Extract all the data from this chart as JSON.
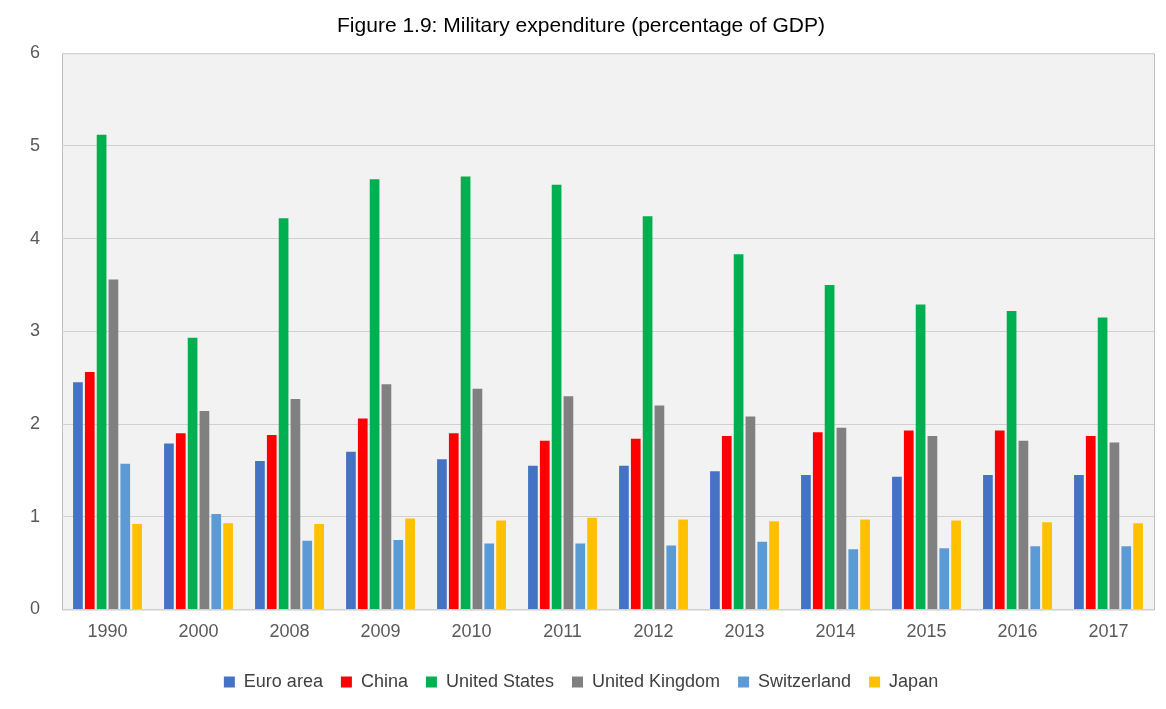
{
  "chart_data": {
    "type": "bar",
    "title": "Figure 1.9: Military expenditure (percentage of GDP)",
    "categories": [
      "1990",
      "2000",
      "2008",
      "2009",
      "2010",
      "2011",
      "2012",
      "2013",
      "2014",
      "2015",
      "2016",
      "2017"
    ],
    "series": [
      {
        "name": "Euro area",
        "color": "#4472c4",
        "values": [
          2.45,
          1.79,
          1.6,
          1.7,
          1.62,
          1.55,
          1.55,
          1.49,
          1.45,
          1.43,
          1.45,
          1.45
        ]
      },
      {
        "name": "China",
        "color": "#ff0000",
        "values": [
          2.56,
          1.9,
          1.88,
          2.06,
          1.9,
          1.82,
          1.84,
          1.87,
          1.91,
          1.93,
          1.93,
          1.87
        ]
      },
      {
        "name": "United States",
        "color": "#00b050",
        "values": [
          5.12,
          2.93,
          4.22,
          4.64,
          4.67,
          4.58,
          4.24,
          3.83,
          3.5,
          3.29,
          3.22,
          3.15
        ]
      },
      {
        "name": "United Kingdom",
        "color": "#808080",
        "values": [
          3.56,
          2.14,
          2.27,
          2.43,
          2.38,
          2.3,
          2.2,
          2.08,
          1.96,
          1.87,
          1.82,
          1.8
        ]
      },
      {
        "name": "Switzerland",
        "color": "#5b9bd5",
        "values": [
          1.57,
          1.03,
          0.74,
          0.75,
          0.71,
          0.71,
          0.69,
          0.73,
          0.65,
          0.66,
          0.68,
          0.68
        ]
      },
      {
        "name": "Japan",
        "color": "#ffc000",
        "values": [
          0.92,
          0.93,
          0.92,
          0.98,
          0.96,
          0.99,
          0.97,
          0.95,
          0.97,
          0.96,
          0.94,
          0.93
        ]
      }
    ],
    "ylim": [
      0,
      6
    ],
    "yticks": [
      0,
      1,
      2,
      3,
      4,
      5,
      6
    ],
    "grid": "y",
    "legend": "bottom"
  }
}
